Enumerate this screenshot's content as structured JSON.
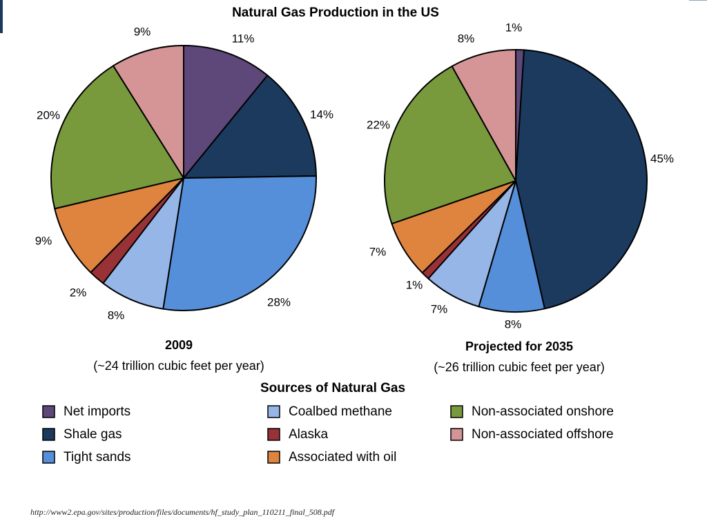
{
  "chart_data": {
    "type": "pie",
    "title": "Natural Gas Production in the US",
    "categories": [
      {
        "name": "Net imports",
        "color": "#5e4779"
      },
      {
        "name": "Shale gas",
        "color": "#1b3a5e"
      },
      {
        "name": "Tight sands",
        "color": "#568fd9"
      },
      {
        "name": "Coalbed methane",
        "color": "#95b6e6"
      },
      {
        "name": "Alaska",
        "color": "#983237"
      },
      {
        "name": "Associated with oil",
        "color": "#de843f"
      },
      {
        "name": "Non-associated onshore",
        "color": "#789a3d"
      },
      {
        "name": "Non-associated offshore",
        "color": "#d59596"
      }
    ],
    "pies": [
      {
        "caption": "2009",
        "subcaption": "(~24 trillion cubic feet per year)",
        "slices": [
          {
            "category": "Net imports",
            "value": 11,
            "label": "11%"
          },
          {
            "category": "Shale gas",
            "value": 14,
            "label": "14%"
          },
          {
            "category": "Tight sands",
            "value": 28,
            "label": "28%"
          },
          {
            "category": "Coalbed methane",
            "value": 8,
            "label": "8%"
          },
          {
            "category": "Alaska",
            "value": 2,
            "label": "2%"
          },
          {
            "category": "Associated with oil",
            "value": 9,
            "label": "9%"
          },
          {
            "category": "Non-associated onshore",
            "value": 20,
            "label": "20%"
          },
          {
            "category": "Non-associated offshore",
            "value": 9,
            "label": "9%"
          }
        ]
      },
      {
        "caption": "Projected for 2035",
        "subcaption": "(~26 trillion cubic feet per year)",
        "slices": [
          {
            "category": "Net imports",
            "value": 1,
            "label": "1%"
          },
          {
            "category": "Shale gas",
            "value": 45,
            "label": "45%"
          },
          {
            "category": "Tight sands",
            "value": 8,
            "label": "8%"
          },
          {
            "category": "Coalbed methane",
            "value": 7,
            "label": "7%"
          },
          {
            "category": "Alaska",
            "value": 1,
            "label": "1%"
          },
          {
            "category": "Associated with oil",
            "value": 7,
            "label": "7%"
          },
          {
            "category": "Non-associated onshore",
            "value": 22,
            "label": "22%"
          },
          {
            "category": "Non-associated offshore",
            "value": 8,
            "label": "8%"
          }
        ]
      }
    ],
    "legend": {
      "title": "Sources of Natural Gas",
      "placement": "bottom"
    }
  },
  "source_url": "http://www2.epa.gov/sites/production/files/documents/hf_study_plan_110211_final_508.pdf"
}
